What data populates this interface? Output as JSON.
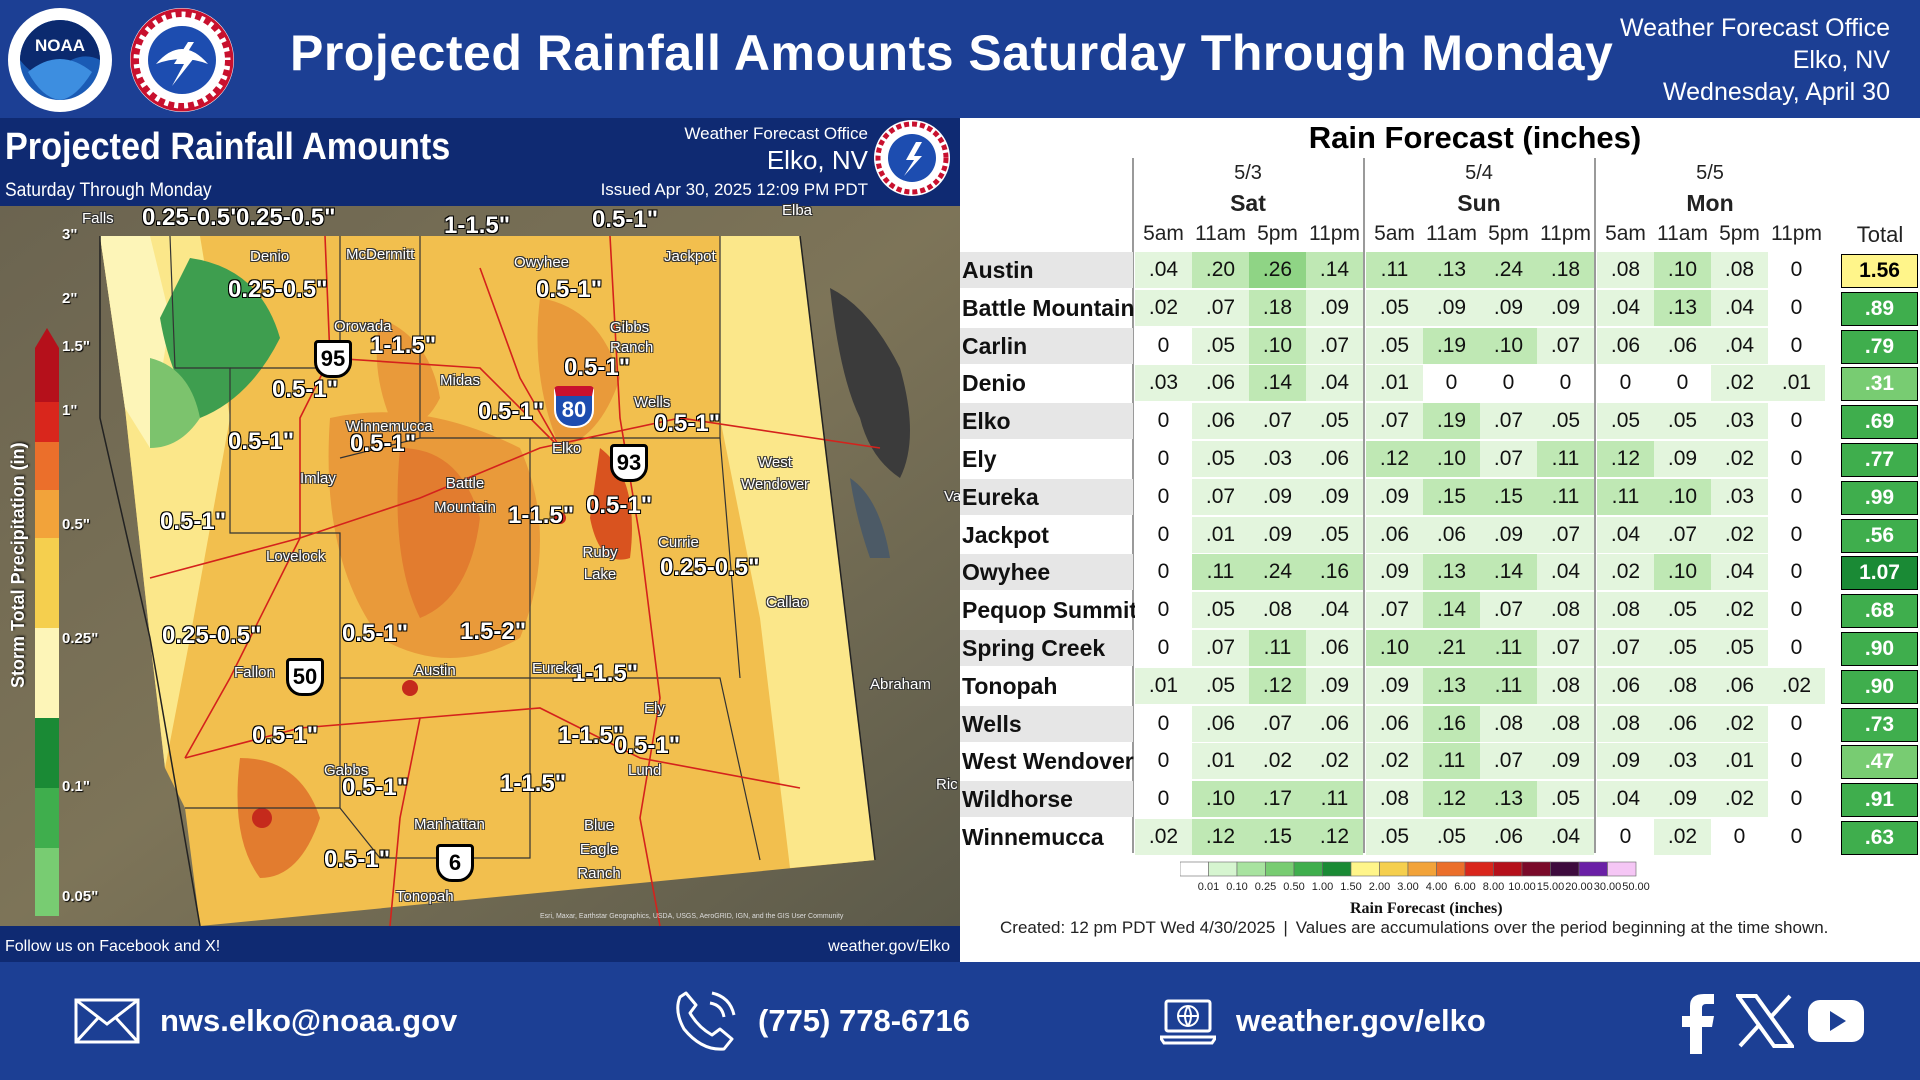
{
  "header": {
    "title": "Projected Rainfall Amounts Saturday Through Monday",
    "office_line1": "Weather Forecast Office",
    "office_line2": "Elko, NV",
    "office_line3": "Wednesday, April 30",
    "noaa_logo_text": "NOAA",
    "colors": {
      "banner": "#1c3f94"
    }
  },
  "map": {
    "title": "Projected Rainfall Amounts",
    "subtitle": "Saturday Through Monday",
    "wfo_line1": "Weather Forecast Office",
    "wfo_line2": "Elko, NV",
    "issued": "Issued Apr 30, 2025 12:09 PM PDT",
    "footer_left": "Follow us on Facebook and X!",
    "footer_right": "weather.gov/Elko",
    "colorbar": {
      "axis_label": "Storm Total Precipitation (in)",
      "ticks": [
        "3\"",
        "2\"",
        "1.5\"",
        "1\"",
        "0.5\"",
        "0.25\"",
        "0.1\"",
        "0.05\""
      ]
    },
    "range_labels": [
      "0.25-0.5\"",
      "0.25-0.5\"",
      "1-1.5\"",
      "0.5-1\"",
      "0.25-0.5\"",
      "0.5-1\"",
      "1-1.5\"",
      "0.5-1\"",
      "0.5-1\"",
      "0.5-1\"",
      "0.5-1\"",
      "0.5-1\"",
      "0.5-1\"",
      "0.5-1\"",
      "1-1.5\"",
      "0.5-1\"",
      "0.25-0.5\"",
      "0.25-0.5\"",
      "0.5-1\"",
      "1.5-2\"",
      "1-1.5\"",
      "0.5-1\"",
      "1-1.5\"",
      "0.5-1\"",
      "1-1.5\"",
      "0.5-1\"",
      "0.5-1\""
    ],
    "towns": [
      "Falls",
      "Denio",
      "McDermitt",
      "Owyhee",
      "Elba",
      "Jackpot",
      "Orovada",
      "Gibbs Ranch",
      "Midas",
      "Wells",
      "Winnemucca",
      "Imlay",
      "Battle Mountain",
      "Elko",
      "West Wendover",
      "Lovelock",
      "Ruby Lake",
      "Currie",
      "Callao",
      "Fallon",
      "Austin",
      "Eureka",
      "Ely",
      "Abraham",
      "Gabbs",
      "Lund",
      "Manhattan",
      "Blue Eagle Ranch",
      "Tonopah",
      "Va",
      "Ric"
    ],
    "highways": {
      "us95": "95",
      "i80": "80",
      "us93": "93",
      "us50": "50",
      "us6": "6"
    },
    "interstate_header": "INTERSTATE",
    "credits": "Esri, Maxar, Earthstar Geographics, USDA, USGS, AeroGRID, IGN, and the GIS User Community"
  },
  "table": {
    "title": "Rain Forecast (inches)",
    "days": [
      {
        "date": "5/3",
        "name": "Sat"
      },
      {
        "date": "5/4",
        "name": "Sun"
      },
      {
        "date": "5/5",
        "name": "Mon"
      }
    ],
    "times": [
      "5am",
      "11am",
      "5pm",
      "11pm",
      "5am",
      "11am",
      "5pm",
      "11pm",
      "5am",
      "11am",
      "5pm",
      "11pm"
    ],
    "total_label": "Total",
    "rows": [
      {
        "name": "Austin",
        "values": [
          ".04",
          ".20",
          ".26",
          ".14",
          ".11",
          ".13",
          ".24",
          ".18",
          ".08",
          ".10",
          ".08",
          "0"
        ],
        "total": "1.56"
      },
      {
        "name": "Battle Mountain",
        "values": [
          ".02",
          ".07",
          ".18",
          ".09",
          ".05",
          ".09",
          ".09",
          ".09",
          ".04",
          ".13",
          ".04",
          "0"
        ],
        "total": ".89"
      },
      {
        "name": "Carlin",
        "values": [
          "0",
          ".05",
          ".10",
          ".07",
          ".05",
          ".19",
          ".10",
          ".07",
          ".06",
          ".06",
          ".04",
          "0"
        ],
        "total": ".79"
      },
      {
        "name": "Denio",
        "values": [
          ".03",
          ".06",
          ".14",
          ".04",
          ".01",
          "0",
          "0",
          "0",
          "0",
          "0",
          ".02",
          ".01"
        ],
        "total": ".31"
      },
      {
        "name": "Elko",
        "values": [
          "0",
          ".06",
          ".07",
          ".05",
          ".07",
          ".19",
          ".07",
          ".05",
          ".05",
          ".05",
          ".03",
          "0"
        ],
        "total": ".69"
      },
      {
        "name": "Ely",
        "values": [
          "0",
          ".05",
          ".03",
          ".06",
          ".12",
          ".10",
          ".07",
          ".11",
          ".12",
          ".09",
          ".02",
          "0"
        ],
        "total": ".77"
      },
      {
        "name": "Eureka",
        "values": [
          "0",
          ".07",
          ".09",
          ".09",
          ".09",
          ".15",
          ".15",
          ".11",
          ".11",
          ".10",
          ".03",
          "0"
        ],
        "total": ".99"
      },
      {
        "name": "Jackpot",
        "values": [
          "0",
          ".01",
          ".09",
          ".05",
          ".06",
          ".06",
          ".09",
          ".07",
          ".04",
          ".07",
          ".02",
          "0"
        ],
        "total": ".56"
      },
      {
        "name": "Owyhee",
        "values": [
          "0",
          ".11",
          ".24",
          ".16",
          ".09",
          ".13",
          ".14",
          ".04",
          ".02",
          ".10",
          ".04",
          "0"
        ],
        "total": "1.07"
      },
      {
        "name": "Pequop Summit",
        "values": [
          "0",
          ".05",
          ".08",
          ".04",
          ".07",
          ".14",
          ".07",
          ".08",
          ".08",
          ".05",
          ".02",
          "0"
        ],
        "total": ".68"
      },
      {
        "name": "Spring Creek",
        "values": [
          "0",
          ".07",
          ".11",
          ".06",
          ".10",
          ".21",
          ".11",
          ".07",
          ".07",
          ".05",
          ".05",
          "0"
        ],
        "total": ".90"
      },
      {
        "name": "Tonopah",
        "values": [
          ".01",
          ".05",
          ".12",
          ".09",
          ".09",
          ".13",
          ".11",
          ".08",
          ".06",
          ".08",
          ".06",
          ".02"
        ],
        "total": ".90"
      },
      {
        "name": "Wells",
        "values": [
          "0",
          ".06",
          ".07",
          ".06",
          ".06",
          ".16",
          ".08",
          ".08",
          ".08",
          ".06",
          ".02",
          "0"
        ],
        "total": ".73"
      },
      {
        "name": "West Wendover",
        "values": [
          "0",
          ".01",
          ".02",
          ".02",
          ".02",
          ".11",
          ".07",
          ".09",
          ".09",
          ".03",
          ".01",
          "0"
        ],
        "total": ".47"
      },
      {
        "name": "Wildhorse",
        "values": [
          "0",
          ".10",
          ".17",
          ".11",
          ".08",
          ".12",
          ".13",
          ".05",
          ".04",
          ".09",
          ".02",
          "0"
        ],
        "total": ".91"
      },
      {
        "name": "Winnemucca",
        "values": [
          ".02",
          ".12",
          ".15",
          ".12",
          ".05",
          ".05",
          ".06",
          ".04",
          "0",
          ".02",
          "0",
          "0"
        ],
        "total": ".63"
      }
    ],
    "legend": {
      "title": "Rain Forecast (inches)",
      "ticks": [
        "0.01",
        "0.10",
        "0.25",
        "0.50",
        "1.00",
        "1.50",
        "2.00",
        "3.00",
        "4.00",
        "6.00",
        "8.00",
        "10.00",
        "15.00",
        "20.00",
        "30.00",
        "50.00"
      ],
      "colors": [
        "#ffffff",
        "#d6f5d0",
        "#a8e3a0",
        "#78cc72",
        "#3fae4d",
        "#1a8a35",
        "#fff58a",
        "#f5cf4e",
        "#f2a33a",
        "#eb6f2b",
        "#d9261c",
        "#b5101b",
        "#7a0a2a",
        "#3e0b3e",
        "#6a1fa6",
        "#f5c6f5"
      ]
    },
    "created": "Created: 12 pm PDT Wed 4/30/2025",
    "created_note": "Values are accumulations over the period beginning at the time shown.",
    "separator": "|"
  },
  "footer": {
    "email": "nws.elko@noaa.gov",
    "phone": "(775) 778-6716",
    "website": "weather.gov/elko",
    "social": [
      "facebook-icon",
      "x-icon",
      "youtube-icon"
    ]
  }
}
